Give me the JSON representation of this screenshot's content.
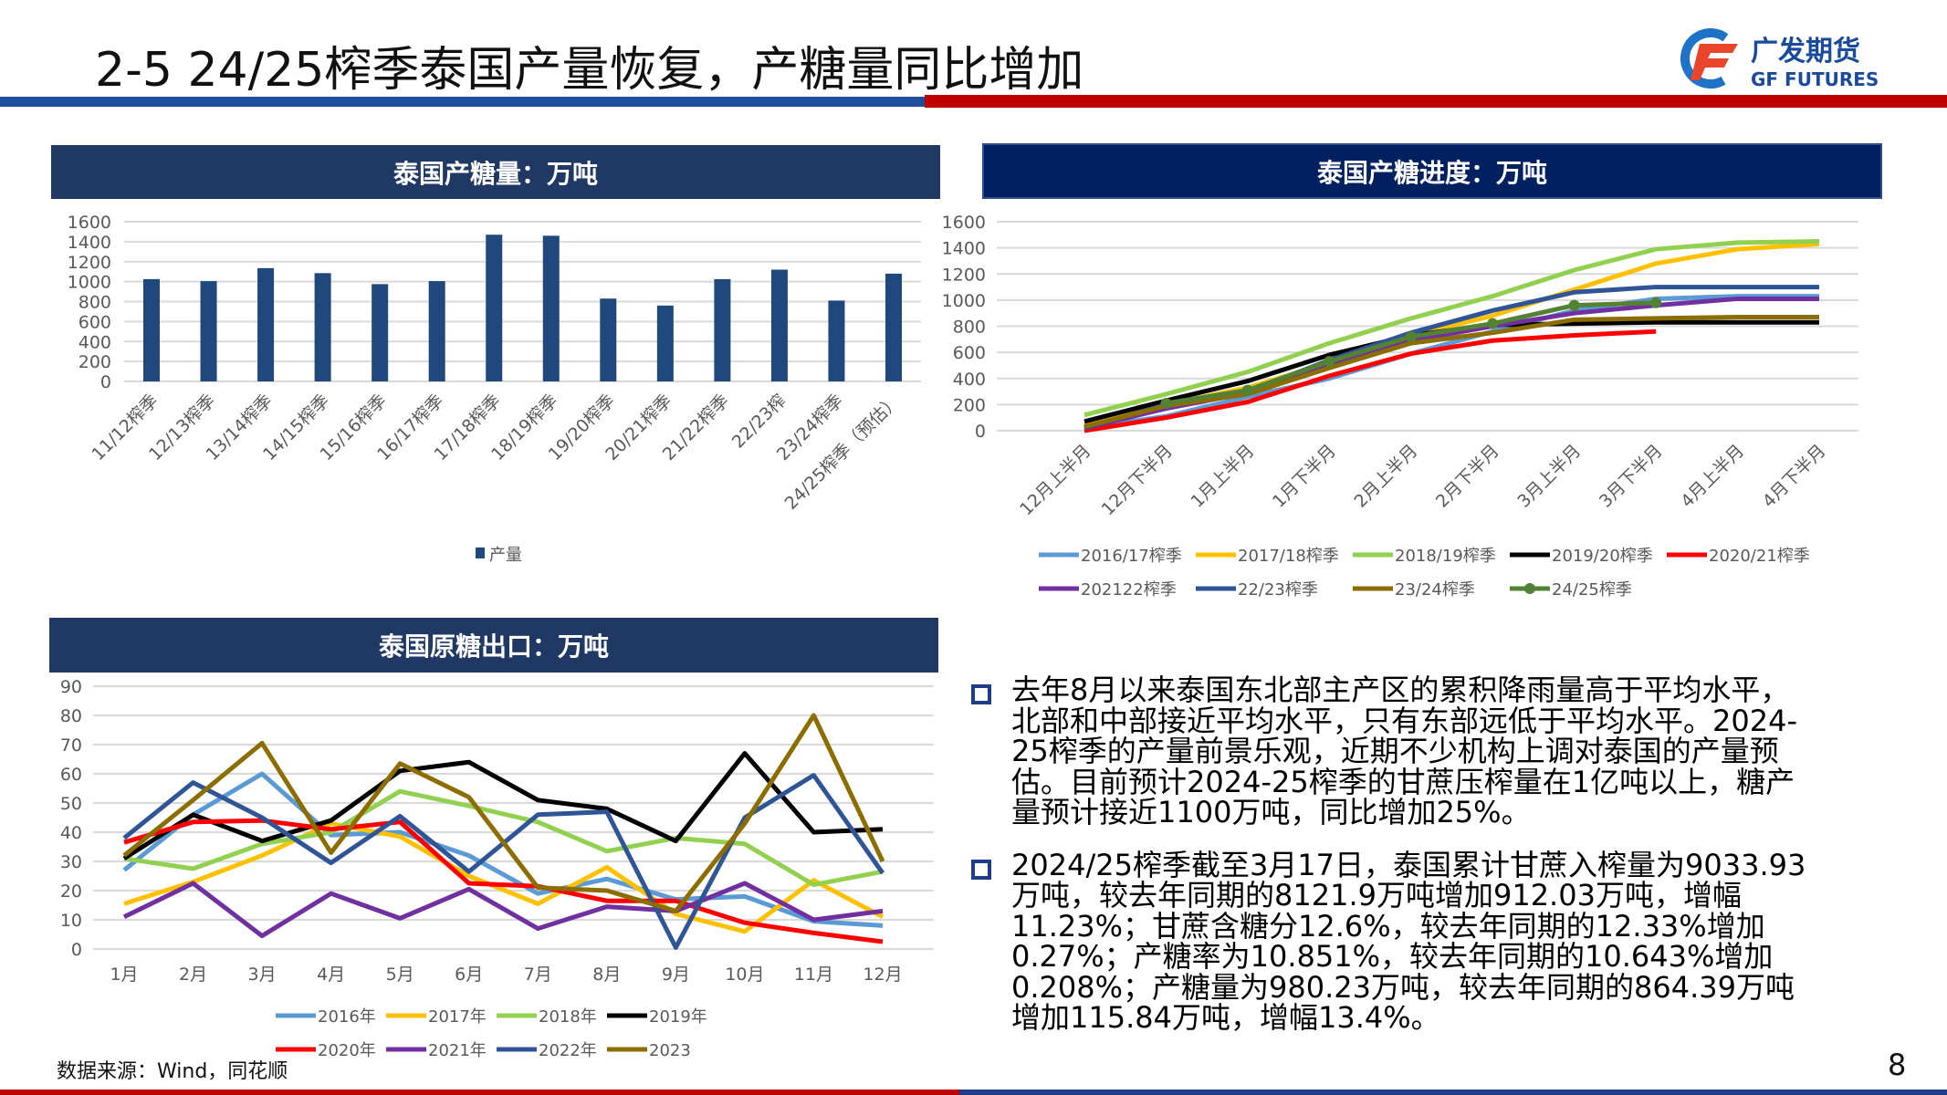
{
  "header": {
    "title": "2-5 24/25榨季泰国产量恢复，产糖量同比增加",
    "logo_cn": "广发期货",
    "logo_en": "GF FUTURES",
    "brand_blue": "#1f4e9c",
    "brand_red": "#c00000"
  },
  "panels": {
    "production": {
      "title": "泰国产糖量：万吨"
    },
    "progress": {
      "title": "泰国产糖进度：万吨"
    },
    "exports": {
      "title": "泰国原糖出口：万吨"
    }
  },
  "chart_data": [
    {
      "type": "bar",
      "title": "泰国产糖量：万吨",
      "categories": [
        "11/12榨季",
        "12/13榨季",
        "13/14榨季",
        "14/15榨季",
        "15/16榨季",
        "16/17榨季",
        "17/18榨季",
        "18/19榨季",
        "19/20榨季",
        "20/21榨季",
        "21/22榨季",
        "22/23榨",
        "23/24榨季",
        "24/25榨季（预估）"
      ],
      "series": [
        {
          "name": "产量",
          "color": "#1f497d",
          "values": [
            1025,
            1005,
            1135,
            1085,
            975,
            1005,
            1470,
            1460,
            830,
            760,
            1025,
            1120,
            810,
            1080
          ]
        }
      ],
      "yticks": [
        0,
        200,
        400,
        600,
        800,
        1000,
        1200,
        1400,
        1600
      ],
      "ylim": [
        0,
        1600
      ],
      "grid": true,
      "legend": "bottom"
    },
    {
      "type": "line",
      "title": "泰国产糖进度：万吨",
      "categories": [
        "12月上半月",
        "12月下半月",
        "1月上半月",
        "1月下半月",
        "2月上半月",
        "2月下半月",
        "3月上半月",
        "3月下半月",
        "4月上半月",
        "4月下半月"
      ],
      "yticks": [
        0,
        200,
        400,
        600,
        800,
        1000,
        1200,
        1400,
        1600
      ],
      "ylim": [
        0,
        1600
      ],
      "grid": true,
      "legend": "bottom",
      "series": [
        {
          "name": "2016/17榨季",
          "color": "#5b9bd5",
          "values": [
            20,
            110,
            260,
            400,
            590,
            760,
            920,
            1010,
            1030,
            1030
          ]
        },
        {
          "name": "2017/18榨季",
          "color": "#ffc000",
          "values": [
            40,
            200,
            330,
            520,
            730,
            880,
            1080,
            1280,
            1390,
            1430
          ]
        },
        {
          "name": "2018/19榨季",
          "color": "#92d050",
          "values": [
            120,
            280,
            450,
            670,
            860,
            1030,
            1230,
            1390,
            1440,
            1450
          ]
        },
        {
          "name": "2019/20榨季",
          "color": "#000000",
          "values": [
            70,
            230,
            380,
            580,
            730,
            810,
            820,
            830,
            830,
            830
          ]
        },
        {
          "name": "2020/21榨季",
          "color": "#ff0000",
          "values": [
            0,
            100,
            220,
            420,
            590,
            690,
            730,
            760,
            null,
            null
          ]
        },
        {
          "name": "202122榨季",
          "color": "#7030a0",
          "values": [
            20,
            170,
            290,
            500,
            690,
            800,
            900,
            960,
            1010,
            1010
          ]
        },
        {
          "name": "22/23榨季",
          "color": "#2f5597",
          "values": [
            20,
            200,
            300,
            540,
            750,
            920,
            1060,
            1100,
            1100,
            1100
          ]
        },
        {
          "name": "23/24榨季",
          "color": "#8c6d00",
          "values": [
            30,
            190,
            280,
            480,
            670,
            750,
            850,
            860,
            870,
            870
          ]
        },
        {
          "name": "24/25榨季",
          "color": "#548235",
          "markers": true,
          "values": [
            null,
            210,
            310,
            530,
            720,
            820,
            960,
            980,
            null,
            null
          ]
        }
      ]
    },
    {
      "type": "line",
      "title": "泰国原糖出口：万吨",
      "categories": [
        "1月",
        "2月",
        "3月",
        "4月",
        "5月",
        "6月",
        "7月",
        "8月",
        "9月",
        "10月",
        "11月",
        "12月"
      ],
      "yticks": [
        0,
        10,
        20,
        30,
        40,
        50,
        60,
        70,
        80,
        90
      ],
      "ylim": [
        0,
        90
      ],
      "grid": true,
      "legend": "bottom",
      "series": [
        {
          "name": "2016年",
          "color": "#5b9bd5",
          "values": [
            27,
            46,
            60,
            39,
            40,
            32,
            19,
            24,
            17,
            18,
            9.5,
            8
          ]
        },
        {
          "name": "2017年",
          "color": "#ffc000",
          "values": [
            15.5,
            23,
            32,
            43,
            38.5,
            25,
            15.5,
            28,
            12,
            6,
            23.5,
            11
          ]
        },
        {
          "name": "2018年",
          "color": "#92d050",
          "values": [
            31,
            27.5,
            36,
            40,
            54,
            49,
            43.5,
            33.5,
            38,
            36,
            22,
            26.5
          ]
        },
        {
          "name": "2019年",
          "color": "#000000",
          "values": [
            31,
            46,
            37,
            44,
            61,
            64,
            51,
            48,
            37,
            67,
            40,
            41
          ]
        },
        {
          "name": "2020年",
          "color": "#ff0000",
          "values": [
            36.5,
            43.5,
            44,
            41,
            43.5,
            22.5,
            21.5,
            16.5,
            16.5,
            9,
            5.5,
            2.5
          ]
        },
        {
          "name": "2021年",
          "color": "#7030a0",
          "values": [
            11,
            22.5,
            4.5,
            19,
            10.5,
            20.5,
            7,
            14.5,
            13,
            22.5,
            10,
            13
          ]
        },
        {
          "name": "2022年",
          "color": "#2f5597",
          "values": [
            38,
            57,
            45,
            29.5,
            45.5,
            26.5,
            46,
            47,
            0.5,
            45,
            59.5,
            26
          ]
        },
        {
          "name": "2023",
          "color": "#8c6d00",
          "values": [
            32,
            51,
            70.5,
            33,
            63.5,
            52,
            21,
            20,
            13,
            43,
            80,
            30
          ]
        }
      ]
    }
  ],
  "text": {
    "paragraphs": [
      {
        "lines": [
          "去年8月以来泰国东北部主产区的累积降雨量高于平均水平，",
          "北部和中部接近平均水平，只有东部远低于平均水平。2024-",
          "25榨季的产量前景乐观，近期不少机构上调对泰国的产量预",
          "估。目前预计2024-25榨季的甘蔗压榨量在1亿吨以上，糖产",
          "量预计接近1100万吨，同比增加25%。"
        ]
      },
      {
        "lines": [
          "2024/25榨季截至3月17日，泰国累计甘蔗入榨量为9033.93",
          "万吨，较去年同期的8121.9万吨增加912.03万吨，增幅",
          "11.23%；甘蔗含糖分12.6%，较去年同期的12.33%增加",
          "0.27%；产糖率为10.851%，较去年同期的10.643%增加",
          "0.208%；产糖量为980.23万吨，较去年同期的864.39万吨",
          "增加115.84万吨，增幅13.4%。"
        ]
      }
    ]
  },
  "footer": {
    "source": "数据来源：Wind，同花顺",
    "page_number": "8"
  }
}
